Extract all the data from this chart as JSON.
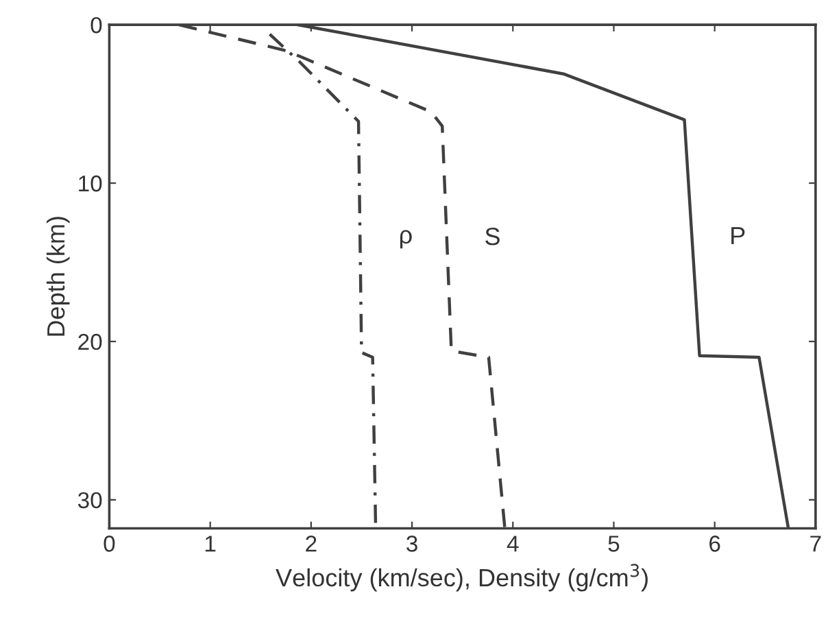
{
  "chart_data": {
    "type": "line",
    "xlabel": "Velocity (km/sec), Density (g/cm$^{3}$)",
    "ylabel": "Depth (km)",
    "xlim": [
      0,
      7
    ],
    "ylim": [
      31.8,
      0
    ],
    "xticks": [
      0,
      1,
      2,
      3,
      4,
      5,
      6,
      7
    ],
    "yticks": [
      0,
      10,
      20,
      30
    ],
    "grid": false,
    "legend": false,
    "marker": "none",
    "series": [
      {
        "name": "P",
        "color": "#404040",
        "line_style": "solid",
        "x": [
          1.87,
          4.5,
          5.7,
          5.85,
          6.44,
          6.73
        ],
        "values": [
          0,
          3.1,
          6.0,
          20.9,
          21.0,
          31.8
        ]
      },
      {
        "name": "S",
        "color": "#404040",
        "line_style": "dashed",
        "x": [
          0.69,
          1.73,
          1.89,
          3.19,
          3.3,
          3.39,
          3.76,
          3.92
        ],
        "values": [
          0,
          1.6,
          2.0,
          5.5,
          6.4,
          20.6,
          21.0,
          31.8
        ]
      },
      {
        "name": "ρ",
        "color": "#404040",
        "line_style": "dashdot",
        "x": [
          1.59,
          1.88,
          2.47,
          2.5,
          2.61,
          2.64
        ],
        "values": [
          0.6,
          2.3,
          6.1,
          20.7,
          21.0,
          31.8
        ]
      }
    ]
  }
}
